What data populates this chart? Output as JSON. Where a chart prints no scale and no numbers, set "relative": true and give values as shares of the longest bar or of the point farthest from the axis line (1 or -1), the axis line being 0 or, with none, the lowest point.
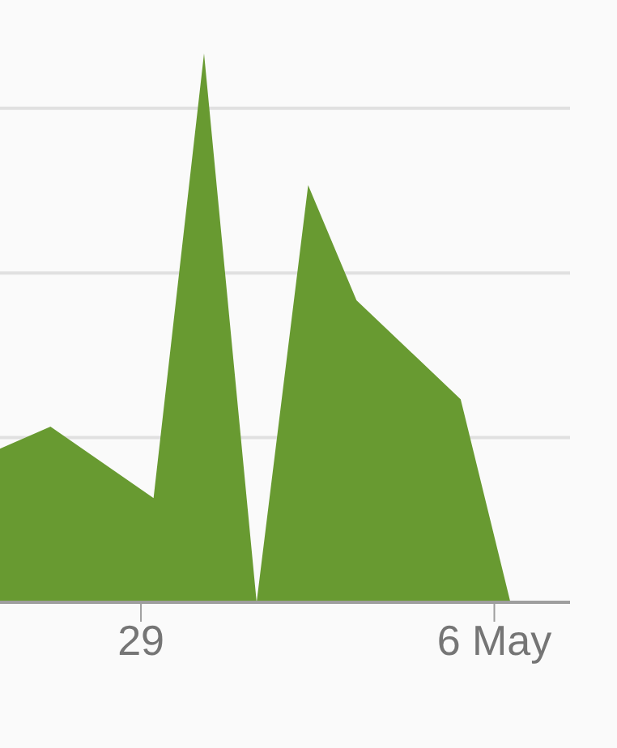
{
  "chart_data": {
    "type": "area",
    "relative": true,
    "x": [
      "--04-26T05:00",
      "--04-27T05:00",
      "--04-29T06:00",
      "--04-30T06:00",
      "--05-01T07:00",
      "--05-02T07:30",
      "--05-03T06:30",
      "--05-05T08:00",
      "--05-06T07:40"
    ],
    "values": [
      0.28,
      0.32,
      0.19,
      1,
      0,
      0.76,
      0.55,
      0.37,
      0
    ],
    "color": "#689a31",
    "xlim": [
      "--04-26T05:00",
      "--05-07T12:00"
    ],
    "xticks": [
      {
        "value": "--04-29",
        "label": "29"
      },
      {
        "value": "--05-06",
        "label": "6 May"
      }
    ],
    "grid": "y"
  }
}
